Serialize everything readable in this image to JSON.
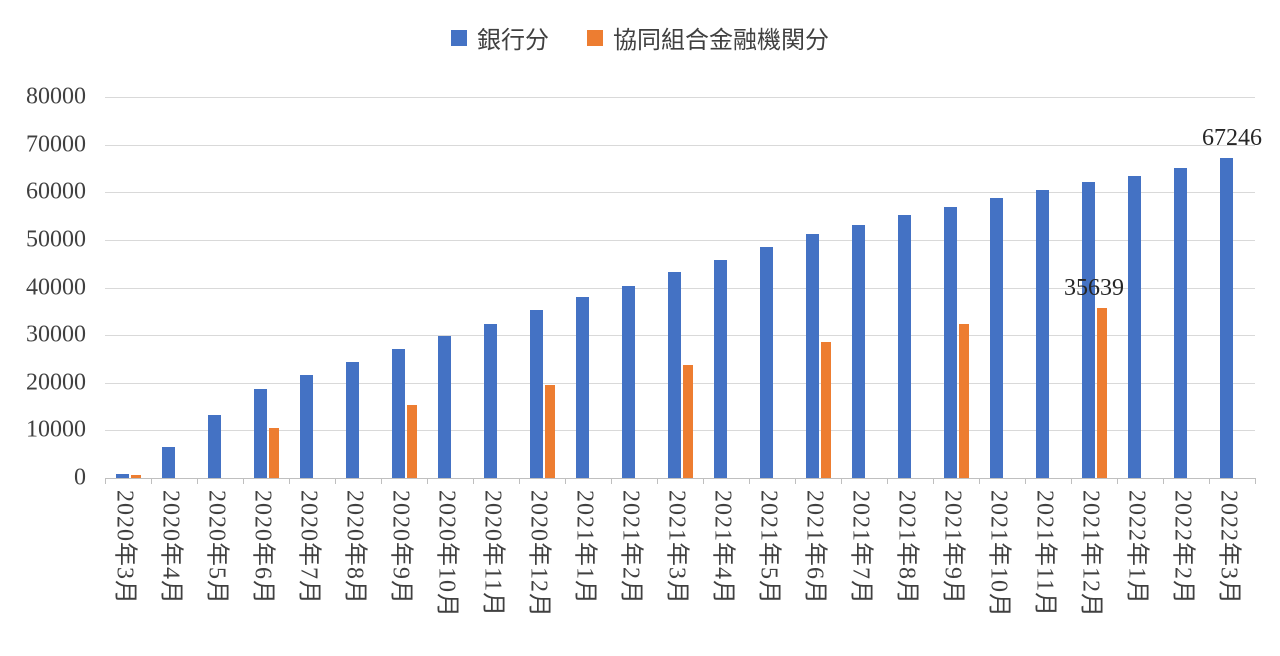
{
  "legend": {
    "items": [
      {
        "label": "銀行分",
        "color": "#4472C4"
      },
      {
        "label": "協同組合金融機関分",
        "color": "#ED7D31"
      }
    ]
  },
  "chart_data": {
    "type": "bar",
    "title": "",
    "xlabel": "",
    "ylabel": "",
    "ylim": [
      0,
      80000
    ],
    "yticks": [
      0,
      10000,
      20000,
      30000,
      40000,
      50000,
      60000,
      70000,
      80000
    ],
    "grid": true,
    "legend_position": "top",
    "categories": [
      "2020年3月",
      "2020年4月",
      "2020年5月",
      "2020年6月",
      "2020年7月",
      "2020年8月",
      "2020年9月",
      "2020年10月",
      "2020年11月",
      "2020年12月",
      "2021年1月",
      "2021年2月",
      "2021年3月",
      "2021年4月",
      "2021年5月",
      "2021年6月",
      "2021年7月",
      "2021年8月",
      "2021年9月",
      "2021年10月",
      "2021年11月",
      "2021年12月",
      "2022年1月",
      "2022年2月",
      "2022年3月"
    ],
    "series": [
      {
        "name": "銀行分",
        "color": "#4472C4",
        "values": [
          800,
          6500,
          13200,
          18700,
          21600,
          24400,
          27100,
          29800,
          32400,
          35300,
          38000,
          40300,
          43300,
          45800,
          48500,
          51300,
          53100,
          55200,
          56900,
          58800,
          60500,
          62200,
          63500,
          65000,
          67246
        ]
      },
      {
        "name": "協同組合金融機関分",
        "color": "#ED7D31",
        "values": [
          700,
          null,
          null,
          10500,
          null,
          null,
          15300,
          null,
          null,
          19500,
          null,
          null,
          23800,
          null,
          null,
          28600,
          null,
          null,
          32300,
          null,
          null,
          35639,
          null,
          null,
          null
        ]
      }
    ],
    "data_labels": [
      {
        "series_index": 0,
        "category_index": 24,
        "text": "67246"
      },
      {
        "series_index": 1,
        "category_index": 21,
        "text": "35639"
      }
    ]
  }
}
